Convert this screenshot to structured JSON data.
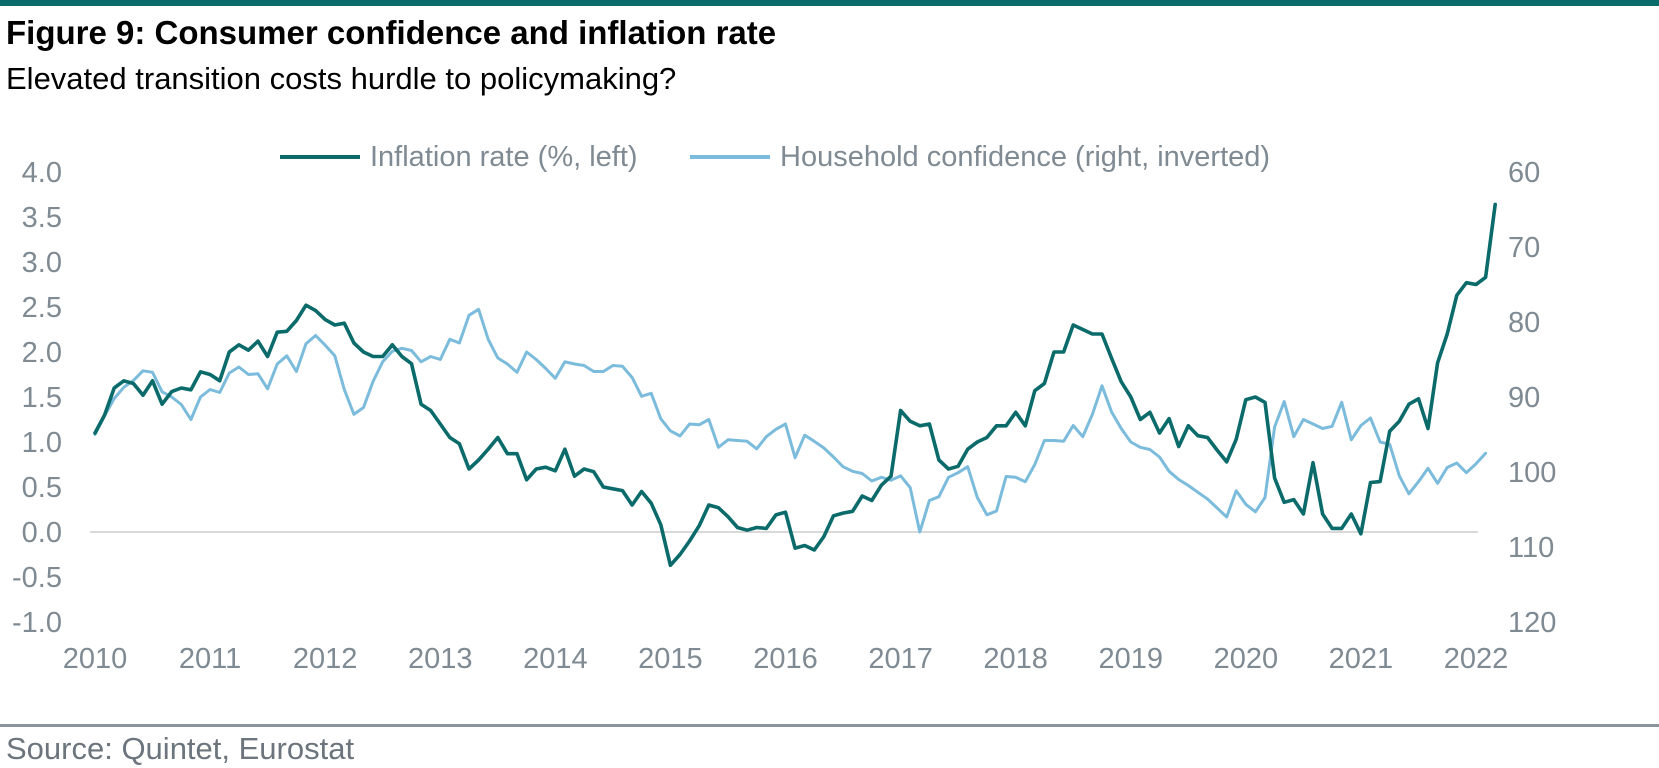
{
  "header": {
    "title": "Figure 9: Consumer confidence and inflation rate",
    "subtitle": "Elevated transition costs hurdle to policymaking?"
  },
  "footer": {
    "source": "Source: Quintet, Eurostat"
  },
  "colors": {
    "accent": "#0b6b6a",
    "inflation": "#0b6b6a",
    "confidence": "#7bbbdc",
    "axis_text": "#7f8a93",
    "zero_line": "#d9d9d9"
  },
  "chart_data": {
    "type": "line",
    "title": "Figure 9: Consumer confidence and inflation rate",
    "subtitle": "Elevated transition costs hurdle to policymaking?",
    "legend_position": "top-center",
    "grid": false,
    "x_ticks": [
      "2010",
      "2011",
      "2012",
      "2013",
      "2014",
      "2015",
      "2016",
      "2017",
      "2018",
      "2019",
      "2020",
      "2021",
      "2022"
    ],
    "y_left": {
      "ticks": [
        "4.0",
        "3.5",
        "3.0",
        "2.5",
        "2.0",
        "1.5",
        "1.0",
        "0.5",
        "0.0",
        "-0.5",
        "-1.0"
      ],
      "range": [
        -1.0,
        4.0
      ]
    },
    "y_right": {
      "ticks": [
        "60",
        "70",
        "80",
        "90",
        "100",
        "110",
        "120"
      ],
      "range": [
        60,
        120
      ],
      "inverted": true
    },
    "series": [
      {
        "name": "Inflation rate (%, left)",
        "axis": "left",
        "start": "2010-01",
        "values": [
          1.1,
          1.3,
          1.6,
          1.68,
          1.65,
          1.52,
          1.68,
          1.42,
          1.56,
          1.6,
          1.58,
          1.78,
          1.75,
          1.68,
          2.0,
          2.08,
          2.02,
          2.12,
          1.95,
          2.22,
          2.23,
          2.35,
          2.52,
          2.46,
          2.36,
          2.3,
          2.32,
          2.1,
          2.0,
          1.95,
          1.95,
          2.08,
          1.95,
          1.87,
          1.42,
          1.35,
          1.2,
          1.05,
          0.98,
          0.7,
          0.8,
          0.92,
          1.05,
          0.87,
          0.87,
          0.58,
          0.7,
          0.72,
          0.68,
          0.92,
          0.62,
          0.7,
          0.67,
          0.5,
          0.48,
          0.46,
          0.3,
          0.45,
          0.32,
          0.08,
          -0.37,
          -0.25,
          -0.1,
          0.07,
          0.3,
          0.27,
          0.17,
          0.05,
          0.02,
          0.05,
          0.04,
          0.19,
          0.22,
          -0.18,
          -0.15,
          -0.2,
          -0.05,
          0.18,
          0.21,
          0.23,
          0.4,
          0.35,
          0.52,
          0.62,
          1.35,
          1.23,
          1.18,
          1.2,
          0.8,
          0.7,
          0.73,
          0.92,
          1.0,
          1.05,
          1.18,
          1.18,
          1.33,
          1.18,
          1.57,
          1.65,
          2.0,
          2.0,
          2.3,
          2.25,
          2.2,
          2.2,
          1.93,
          1.67,
          1.5,
          1.25,
          1.33,
          1.1,
          1.26,
          0.95,
          1.18,
          1.07,
          1.05,
          0.91,
          0.78,
          1.03,
          1.47,
          1.5,
          1.44,
          0.6,
          0.33,
          0.36,
          0.2,
          0.77,
          0.2,
          0.04,
          0.04,
          0.2,
          -0.02,
          0.55,
          0.56,
          1.12,
          1.23,
          1.42,
          1.48,
          1.15,
          1.88,
          2.2,
          2.63,
          2.77,
          2.75,
          2.83,
          3.64
        ]
      },
      {
        "name": "Household confidence (right, inverted)",
        "axis": "right",
        "start": "2010-01",
        "values": [
          95,
          92.5,
          90.2,
          88.7,
          87.8,
          86.5,
          86.7,
          89.3,
          90,
          91,
          93,
          90,
          89,
          89.4,
          86.8,
          86,
          87,
          86.9,
          88.9,
          85.6,
          84.5,
          86.6,
          82.9,
          81.8,
          83.1,
          84.5,
          89,
          92.3,
          91.4,
          87.9,
          85.3,
          83.9,
          83.5,
          83.8,
          85.3,
          84.6,
          85,
          82.3,
          82.8,
          79.1,
          78.3,
          82.3,
          84.8,
          85.6,
          86.7,
          84,
          85,
          86.2,
          87.5,
          85.3,
          85.6,
          85.8,
          86.6,
          86.6,
          85.8,
          85.9,
          87.4,
          89.9,
          89.5,
          92.9,
          94.5,
          95.2,
          93.6,
          93.7,
          93,
          96.7,
          95.7,
          95.8,
          95.9,
          96.9,
          95.3,
          94.3,
          93.6,
          98.1,
          95.1,
          95.9,
          96.8,
          98,
          99.3,
          99.9,
          100.2,
          101.2,
          100.7,
          101.1,
          100.5,
          102.1,
          108,
          103.8,
          103.3,
          100.7,
          100.1,
          99.3,
          103.4,
          105.7,
          105.2,
          100.6,
          100.7,
          101.3,
          99,
          95.8,
          95.8,
          95.9,
          93.8,
          95.3,
          92.3,
          88.5,
          92,
          94.2,
          96,
          96.7,
          97,
          98,
          99.9,
          101,
          101.8,
          102.7,
          103.6,
          104.8,
          106,
          102.5,
          104.3,
          105.3,
          103.4,
          94,
          90.6,
          95.3,
          93,
          93.6,
          94.2,
          93.9,
          90.7,
          95.7,
          93.8,
          92.8,
          96,
          96.3,
          100.5,
          102.9,
          101.3,
          99.5,
          101.5,
          99.4,
          98.8,
          100.1,
          98.9,
          97.5
        ]
      }
    ]
  }
}
